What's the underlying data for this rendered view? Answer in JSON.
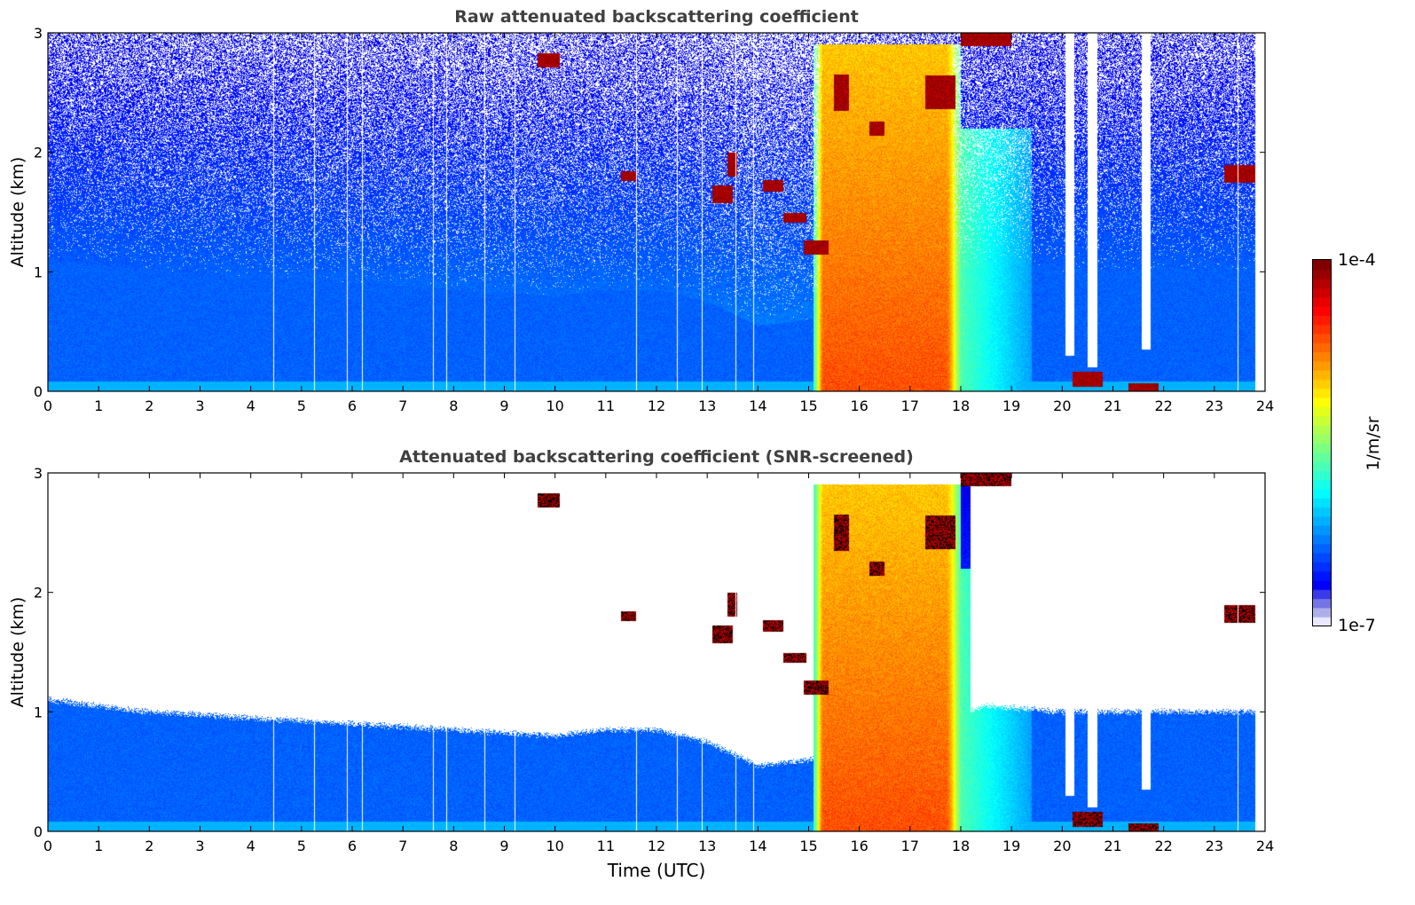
{
  "figure": {
    "colorbar": {
      "label": "1/m/sr",
      "min_label": "1e-7",
      "max_label": "1e-4",
      "colormap": "jet",
      "low_end_color": "#e8e8ff"
    },
    "xlabel": "Time (UTC)"
  },
  "chart_data": [
    {
      "type": "heatmap",
      "title": "Raw attenuated backscattering coefficient",
      "xlabel": "",
      "ylabel": "Altitude (km)",
      "xlim": [
        0,
        24
      ],
      "ylim": [
        0,
        3
      ],
      "xticks": [
        "0",
        "1",
        "2",
        "3",
        "4",
        "5",
        "6",
        "7",
        "8",
        "9",
        "10",
        "11",
        "12",
        "13",
        "14",
        "15",
        "16",
        "17",
        "18",
        "19",
        "20",
        "21",
        "22",
        "23",
        "24"
      ],
      "yticks": [
        "0",
        "1",
        "2",
        "3"
      ],
      "color_scale": {
        "min": 1e-07,
        "max": 0.0001,
        "log": true
      },
      "screened": false,
      "data_end_hour": 23.8,
      "boundary_layer_top_km": [
        [
          0,
          1.1
        ],
        [
          2,
          1.0
        ],
        [
          4,
          0.95
        ],
        [
          6,
          0.9
        ],
        [
          8,
          0.85
        ],
        [
          10,
          0.8
        ],
        [
          11,
          0.85
        ],
        [
          12,
          0.85
        ],
        [
          13,
          0.75
        ],
        [
          14,
          0.55
        ],
        [
          15,
          0.6
        ],
        [
          18.5,
          1.05
        ],
        [
          20,
          1.0
        ],
        [
          22,
          1.0
        ],
        [
          24,
          1.0
        ]
      ],
      "gaps_hours": [
        4.45,
        5.25,
        5.9,
        6.2,
        7.6,
        7.85,
        8.6,
        9.2,
        11.6,
        12.4,
        12.9,
        13.55,
        13.9,
        23.45
      ],
      "dense_cloud_precip_region": {
        "start_hour": 15.1,
        "end_hour": 18.0,
        "top_km": 2.9
      },
      "clear_columns": [
        {
          "hour": 20.15,
          "bottom_km": 0.3
        },
        {
          "hour": 20.6,
          "bottom_km": 0.2
        },
        {
          "hour": 21.65,
          "bottom_km": 0.35
        }
      ],
      "cloud_layers": [
        {
          "t0": 9.65,
          "t1": 10.1,
          "alt_km": 2.77,
          "thickness_km": 0.12
        },
        {
          "t0": 13.1,
          "t1": 13.5,
          "alt_km": 1.65,
          "thickness_km": 0.15
        },
        {
          "t0": 13.4,
          "t1": 13.6,
          "alt_km": 1.9,
          "thickness_km": 0.2
        },
        {
          "t0": 14.1,
          "t1": 14.5,
          "alt_km": 1.72,
          "thickness_km": 0.1
        },
        {
          "t0": 14.5,
          "t1": 14.95,
          "alt_km": 1.45,
          "thickness_km": 0.08
        },
        {
          "t0": 14.9,
          "t1": 15.4,
          "alt_km": 1.2,
          "thickness_km": 0.12
        },
        {
          "t0": 15.5,
          "t1": 15.8,
          "alt_km": 2.5,
          "thickness_km": 0.3
        },
        {
          "t0": 16.2,
          "t1": 16.5,
          "alt_km": 2.2,
          "thickness_km": 0.12
        },
        {
          "t0": 17.3,
          "t1": 17.9,
          "alt_km": 2.5,
          "thickness_km": 0.28
        },
        {
          "t0": 18.0,
          "t1": 19.0,
          "alt_km": 2.95,
          "thickness_km": 0.12
        },
        {
          "t0": 23.2,
          "t1": 23.8,
          "alt_km": 1.82,
          "thickness_km": 0.15
        },
        {
          "t0": 11.3,
          "t1": 11.6,
          "alt_km": 1.8,
          "thickness_km": 0.08
        },
        {
          "t0": 20.2,
          "t1": 20.8,
          "alt_km": 0.1,
          "thickness_km": 0.12
        },
        {
          "t0": 21.3,
          "t1": 21.9,
          "alt_km": 0.03,
          "thickness_km": 0.07
        }
      ]
    },
    {
      "type": "heatmap",
      "title": "Attenuated backscattering coefficient (SNR-screened)",
      "xlabel": "Time (UTC)",
      "ylabel": "Altitude (km)",
      "xlim": [
        0,
        24
      ],
      "ylim": [
        0,
        3
      ],
      "xticks": [
        "0",
        "1",
        "2",
        "3",
        "4",
        "5",
        "6",
        "7",
        "8",
        "9",
        "10",
        "11",
        "12",
        "13",
        "14",
        "15",
        "16",
        "17",
        "18",
        "19",
        "20",
        "21",
        "22",
        "23",
        "24"
      ],
      "yticks": [
        "0",
        "1",
        "2",
        "3"
      ],
      "color_scale": {
        "min": 1e-07,
        "max": 0.0001,
        "log": true
      },
      "screened": true,
      "data_end_hour": 23.8,
      "boundary_layer_top_km": [
        [
          0,
          1.1
        ],
        [
          2,
          1.0
        ],
        [
          4,
          0.95
        ],
        [
          6,
          0.9
        ],
        [
          8,
          0.85
        ],
        [
          10,
          0.8
        ],
        [
          11,
          0.85
        ],
        [
          12,
          0.85
        ],
        [
          13,
          0.75
        ],
        [
          14,
          0.55
        ],
        [
          15,
          0.6
        ],
        [
          18.5,
          1.05
        ],
        [
          20,
          1.0
        ],
        [
          22,
          1.0
        ],
        [
          24,
          1.0
        ]
      ],
      "gaps_hours": [
        4.45,
        5.25,
        5.9,
        6.2,
        7.6,
        7.85,
        8.6,
        9.2,
        11.6,
        12.4,
        12.9,
        13.55,
        13.9,
        23.45
      ],
      "dense_cloud_precip_region": {
        "start_hour": 15.1,
        "end_hour": 18.0,
        "top_km": 2.9
      },
      "clear_columns": [
        {
          "hour": 20.15,
          "bottom_km": 0.3
        },
        {
          "hour": 20.6,
          "bottom_km": 0.2
        },
        {
          "hour": 21.65,
          "bottom_km": 0.35
        }
      ],
      "cloud_layers": [
        {
          "t0": 9.65,
          "t1": 10.1,
          "alt_km": 2.77,
          "thickness_km": 0.12
        },
        {
          "t0": 13.1,
          "t1": 13.5,
          "alt_km": 1.65,
          "thickness_km": 0.15
        },
        {
          "t0": 13.4,
          "t1": 13.6,
          "alt_km": 1.9,
          "thickness_km": 0.2
        },
        {
          "t0": 14.1,
          "t1": 14.5,
          "alt_km": 1.72,
          "thickness_km": 0.1
        },
        {
          "t0": 14.5,
          "t1": 14.95,
          "alt_km": 1.45,
          "thickness_km": 0.08
        },
        {
          "t0": 14.9,
          "t1": 15.4,
          "alt_km": 1.2,
          "thickness_km": 0.12
        },
        {
          "t0": 15.5,
          "t1": 15.8,
          "alt_km": 2.5,
          "thickness_km": 0.3
        },
        {
          "t0": 16.2,
          "t1": 16.5,
          "alt_km": 2.2,
          "thickness_km": 0.12
        },
        {
          "t0": 17.3,
          "t1": 17.9,
          "alt_km": 2.5,
          "thickness_km": 0.28
        },
        {
          "t0": 18.0,
          "t1": 19.0,
          "alt_km": 2.95,
          "thickness_km": 0.12
        },
        {
          "t0": 23.2,
          "t1": 23.8,
          "alt_km": 1.82,
          "thickness_km": 0.15
        },
        {
          "t0": 11.3,
          "t1": 11.6,
          "alt_km": 1.8,
          "thickness_km": 0.08
        },
        {
          "t0": 20.2,
          "t1": 20.8,
          "alt_km": 0.1,
          "thickness_km": 0.12
        },
        {
          "t0": 21.3,
          "t1": 21.9,
          "alt_km": 0.03,
          "thickness_km": 0.07
        }
      ]
    }
  ]
}
